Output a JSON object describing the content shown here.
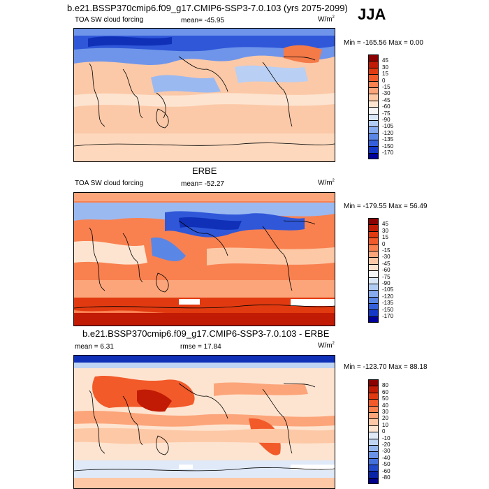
{
  "season_label": "JJA",
  "chart_data": [
    {
      "type": "heatmap",
      "title": "b.e21.BSSP370cmip6.f09_g17.CMIP6-SSP3-7.0.103 (yrs 2075-2099)",
      "left_label": "TOA SW cloud forcing",
      "stat_text": "mean= -45.95",
      "units_base": "W/m",
      "units_exp": "2",
      "minmax_text": "Min = -165.56 Max =   0.00",
      "min": -165.56,
      "max": 0.0,
      "colorbar": {
        "levels": [
          "45",
          "30",
          "15",
          "0",
          "-15",
          "-30",
          "-45",
          "-60",
          "-75",
          "-90",
          "-105",
          "-120",
          "-135",
          "-150",
          "-170"
        ],
        "colors": [
          "#8b0000",
          "#c11b05",
          "#e23a10",
          "#f25a2a",
          "#f98150",
          "#fca57a",
          "#fdc8a6",
          "#fde4d0",
          "#f5f5f5",
          "#d8e6f8",
          "#b0cbf4",
          "#85aaee",
          "#5a86e6",
          "#3560dc",
          "#1438c8",
          "#00009a"
        ]
      }
    },
    {
      "type": "heatmap",
      "title": "ERBE",
      "left_label": "TOA SW cloud forcing",
      "stat_text": "mean= -52.27",
      "units_base": "W/m",
      "units_exp": "2",
      "minmax_text": "Min = -179.55 Max =  56.49",
      "min": -179.55,
      "max": 56.49,
      "colorbar": {
        "levels": [
          "45",
          "30",
          "15",
          "0",
          "-15",
          "-30",
          "-45",
          "-60",
          "-75",
          "-90",
          "-105",
          "-120",
          "-135",
          "-150",
          "-170"
        ],
        "colors": [
          "#8b0000",
          "#c11b05",
          "#e23a10",
          "#f25a2a",
          "#f98150",
          "#fca57a",
          "#fdc8a6",
          "#fde4d0",
          "#f5f5f5",
          "#d8e6f8",
          "#b0cbf4",
          "#85aaee",
          "#5a86e6",
          "#3560dc",
          "#1438c8",
          "#00009a"
        ]
      }
    },
    {
      "type": "heatmap",
      "title": "b.e21.BSSP370cmip6.f09_g17.CMIP6-SSP3-7.0.103 - ERBE",
      "left_label": "mean =   6.31",
      "stat_text": "rmse =  17.84",
      "units_base": "W/m",
      "units_exp": "2",
      "minmax_text": "Min = -123.70 Max =  88.18",
      "min": -123.7,
      "max": 88.18,
      "colorbar": {
        "levels": [
          "80",
          "60",
          "50",
          "40",
          "30",
          "20",
          "10",
          "0",
          "-10",
          "-20",
          "-30",
          "-40",
          "-50",
          "-60",
          "-80"
        ],
        "colors": [
          "#8b0000",
          "#c11b05",
          "#e23a10",
          "#f25a2a",
          "#f98150",
          "#fca57a",
          "#fdc8a6",
          "#fde4d0",
          "#dfe9f8",
          "#c0d4f4",
          "#95b6ee",
          "#6a92e6",
          "#4470dc",
          "#2048c8",
          "#0a24a8",
          "#00008a"
        ]
      }
    }
  ]
}
